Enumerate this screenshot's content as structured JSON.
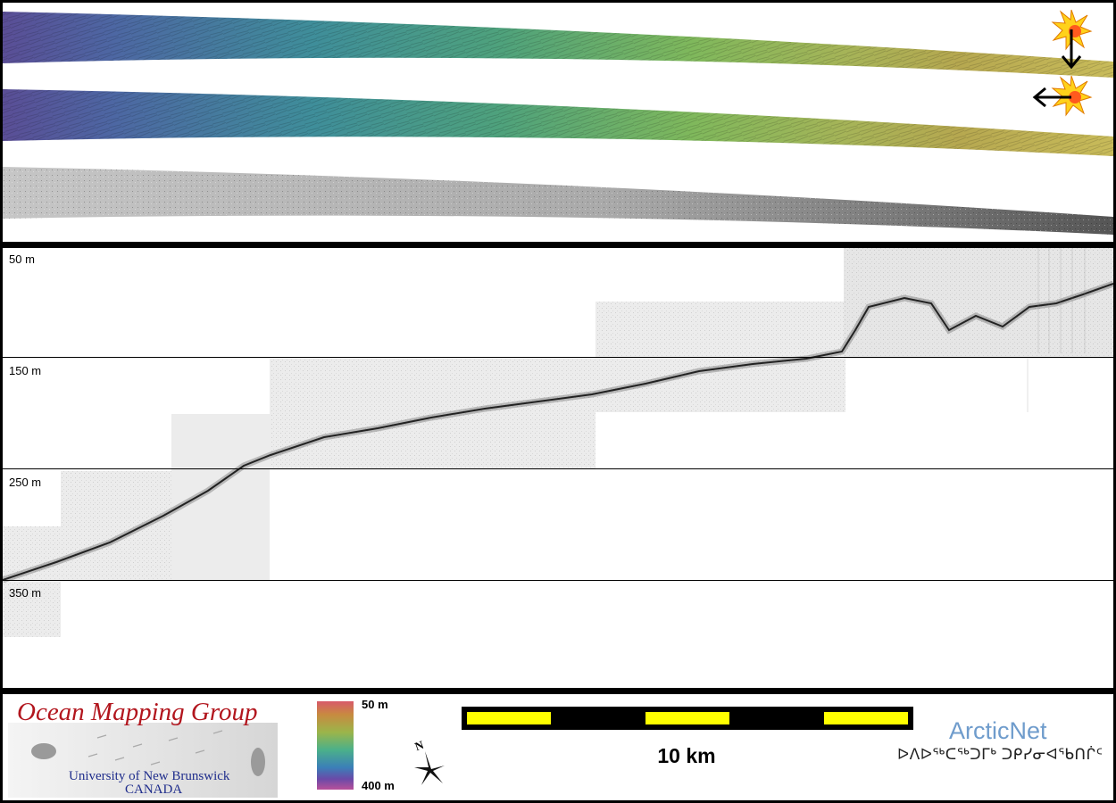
{
  "profile": {
    "depth_labels": [
      "50 m",
      "150 m",
      "250 m",
      "350 m"
    ]
  },
  "legend": {
    "organization": "Ocean Mapping Group",
    "university": "University of New Brunswick",
    "country": "CANADA",
    "colorbar_top": "50 m",
    "colorbar_bottom": "400 m",
    "north_label": "N",
    "scale_bar_label": "10 km",
    "partner_name": "ArcticNet",
    "partner_syllabics": "ᐅᐱᐅᖅᑕᖅᑐᒥᒃ ᑐᑭᓯᓂᐊᖃᑎᒌᑦ"
  },
  "colors": {
    "scale_yellow": "#ffff00",
    "scale_black": "#000000",
    "sun_fill": "#ffd21a",
    "sun_core": "#ff5a1e"
  },
  "icons": [
    "sun-icon",
    "arrow-down-icon",
    "arrow-left-icon",
    "north-arrow-icon"
  ]
}
